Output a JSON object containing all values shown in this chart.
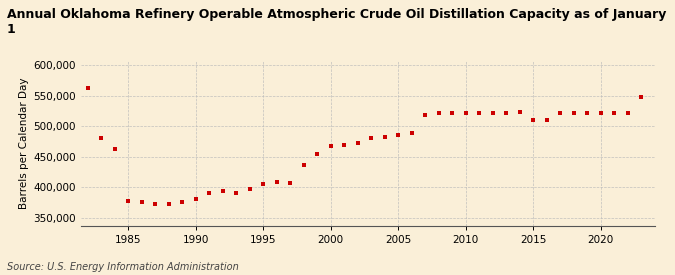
{
  "title": "Annual Oklahoma Refinery Operable Atmospheric Crude Oil Distillation Capacity as of January 1",
  "ylabel": "Barrels per Calendar Day",
  "source": "Source: U.S. Energy Information Administration",
  "background_color": "#faefd8",
  "plot_bg_color": "#faefd8",
  "marker_color": "#cc0000",
  "grid_color": "#bbbbbb",
  "years": [
    1982,
    1983,
    1984,
    1985,
    1986,
    1987,
    1988,
    1989,
    1990,
    1991,
    1992,
    1993,
    1994,
    1995,
    1996,
    1997,
    1998,
    1999,
    2000,
    2001,
    2002,
    2003,
    2004,
    2005,
    2006,
    2007,
    2008,
    2009,
    2010,
    2011,
    2012,
    2013,
    2014,
    2015,
    2016,
    2017,
    2018,
    2019,
    2020,
    2021,
    2022,
    2023
  ],
  "values": [
    563000,
    481000,
    462000,
    378000,
    375000,
    372000,
    372000,
    375000,
    381000,
    390000,
    393000,
    390000,
    397000,
    405000,
    408000,
    406000,
    437000,
    455000,
    468000,
    470000,
    472000,
    480000,
    482000,
    485000,
    489000,
    519000,
    521000,
    521000,
    521000,
    521000,
    521000,
    521000,
    524000,
    510000,
    511000,
    521000,
    521000,
    521000,
    521000,
    521000,
    521000,
    548000
  ],
  "xlim": [
    1981.5,
    2024
  ],
  "ylim": [
    337000,
    608000
  ],
  "yticks": [
    350000,
    400000,
    450000,
    500000,
    550000,
    600000
  ],
  "xticks": [
    1985,
    1990,
    1995,
    2000,
    2005,
    2010,
    2015,
    2020
  ],
  "title_fontsize": 9,
  "axis_fontsize": 7.5,
  "source_fontsize": 7
}
